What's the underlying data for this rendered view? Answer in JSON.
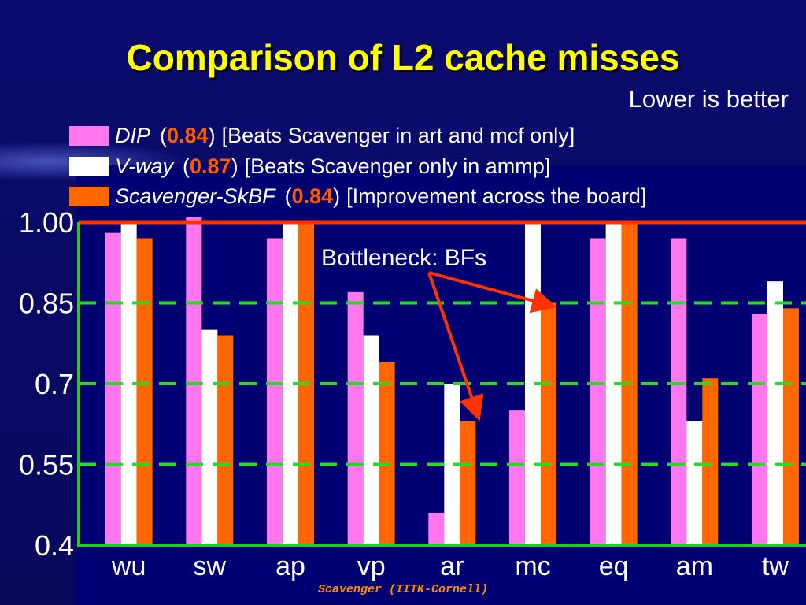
{
  "title": "Comparison of L2 cache misses",
  "subtitle": "Lower is better",
  "legend": [
    {
      "name": "DIP",
      "score": "0.84",
      "note": "[Beats Scavenger in art and mcf only]",
      "color": "#ff77ee"
    },
    {
      "name": "V-way",
      "score": "0.87",
      "note": "[Beats Scavenger only in ammp]",
      "color": "#ffffff"
    },
    {
      "name": "Scavenger-SkBF",
      "score": "0.84",
      "note": "[Improvement across the board]",
      "color": "#ff6600"
    }
  ],
  "annotation": "Bottleneck: BFs",
  "footer": "Scavenger  (IITK-Cornell)",
  "colors": {
    "background": "#0a0a66",
    "title": "#ffff00",
    "axis": "#22cc22",
    "gridline": "#22dd22",
    "topline": "#ff3300",
    "arrow": "#ff3300"
  },
  "chart_data": {
    "type": "bar",
    "categories": [
      "wu",
      "sw",
      "ap",
      "vp",
      "ar",
      "mc",
      "eq",
      "am",
      "tw"
    ],
    "series": [
      {
        "name": "DIP",
        "values": [
          0.98,
          1.01,
          0.97,
          0.87,
          0.46,
          0.65,
          0.97,
          0.97,
          0.83
        ]
      },
      {
        "name": "V-way",
        "values": [
          1.0,
          0.8,
          1.0,
          0.79,
          0.7,
          1.0,
          1.0,
          0.63,
          0.89
        ]
      },
      {
        "name": "Scavenger-SkBF",
        "values": [
          0.97,
          0.79,
          1.0,
          0.74,
          0.63,
          0.85,
          1.0,
          0.71,
          0.84
        ]
      }
    ],
    "yticks": [
      "1.00",
      "0.85",
      "0.7",
      "0.55",
      "0.4"
    ],
    "ylim": [
      0.4,
      1.0
    ],
    "grid": true,
    "legend_position": "top"
  }
}
